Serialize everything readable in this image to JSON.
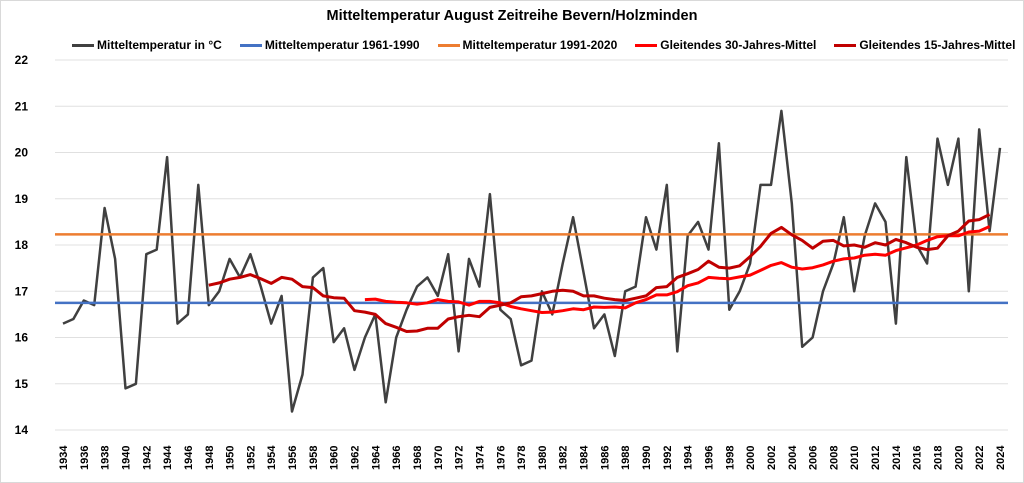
{
  "chart_data": {
    "type": "line",
    "title": "Mitteltemperatur August Zeitreihe Bevern/Holzminden",
    "xlabel": "",
    "ylabel": "",
    "ylim": [
      14,
      22
    ],
    "yticks": [
      14,
      15,
      16,
      17,
      18,
      19,
      20,
      21,
      22
    ],
    "xlim": [
      1934,
      2024
    ],
    "xticks": [
      1934,
      1936,
      1938,
      1940,
      1942,
      1944,
      1946,
      1948,
      1950,
      1952,
      1954,
      1956,
      1958,
      1960,
      1962,
      1964,
      1966,
      1968,
      1970,
      1972,
      1974,
      1976,
      1978,
      1980,
      1982,
      1984,
      1986,
      1988,
      1990,
      1992,
      1994,
      1996,
      1998,
      2000,
      2002,
      2004,
      2006,
      2008,
      2010,
      2012,
      2014,
      2016,
      2018,
      2020,
      2022,
      2024
    ],
    "grid": true,
    "legend_position": "top",
    "series": [
      {
        "name": "Mitteltemperatur in °C",
        "color": "#404040",
        "start_year": 1934,
        "values": [
          16.3,
          16.4,
          16.8,
          16.7,
          18.8,
          17.7,
          14.9,
          15.0,
          17.8,
          17.9,
          19.9,
          16.3,
          16.5,
          19.3,
          16.7,
          17.0,
          17.7,
          17.3,
          17.8,
          17.1,
          16.3,
          16.9,
          14.4,
          15.2,
          17.3,
          17.5,
          15.9,
          16.2,
          15.3,
          16.0,
          16.5,
          14.6,
          16.0,
          16.6,
          17.1,
          17.3,
          16.9,
          17.8,
          15.7,
          17.7,
          17.1,
          19.1,
          16.6,
          16.4,
          15.4,
          15.5,
          17.0,
          16.5,
          17.6,
          18.6,
          17.4,
          16.2,
          16.5,
          15.6,
          17.0,
          17.1,
          18.6,
          17.9,
          19.3,
          15.7,
          18.2,
          18.5,
          17.9,
          20.2,
          16.6,
          17.0,
          17.6,
          19.3,
          19.3,
          20.9,
          18.9,
          15.8,
          16.0,
          17.0,
          17.6,
          18.6,
          17.0,
          18.2,
          18.9,
          18.5,
          16.3,
          19.9,
          18.0,
          17.6,
          20.3,
          19.3,
          20.3,
          17.0,
          20.5,
          18.3,
          20.1
        ]
      },
      {
        "name": "Mitteltemperatur 1961-1990",
        "color": "#4472c4",
        "constant": 16.75
      },
      {
        "name": "Mitteltemperatur 1991-2020",
        "color": "#ed7d31",
        "constant": 18.23
      },
      {
        "name": "Gleitendes 30-Jahres-Mittel",
        "color": "#ff0000",
        "start_year": 1963,
        "values": [
          16.82,
          16.83,
          16.78,
          16.76,
          16.75,
          16.72,
          16.75,
          16.82,
          16.78,
          16.77,
          16.7,
          16.78,
          16.78,
          16.75,
          16.67,
          16.62,
          16.58,
          16.54,
          16.55,
          16.58,
          16.62,
          16.6,
          16.66,
          16.65,
          16.66,
          16.64,
          16.75,
          16.82,
          16.92,
          16.92,
          16.99,
          17.12,
          17.18,
          17.3,
          17.28,
          17.27,
          17.31,
          17.35,
          17.45,
          17.56,
          17.62,
          17.52,
          17.48,
          17.51,
          17.57,
          17.65,
          17.7,
          17.72,
          17.78,
          17.8,
          17.78,
          17.88,
          17.94,
          18.0,
          18.1,
          18.18,
          18.2,
          18.2,
          18.28,
          18.3,
          18.4
        ]
      },
      {
        "name": "Gleitendes 15-Jahres-Mittel",
        "color": "#c00000",
        "start_year": 1948,
        "values": [
          17.13,
          17.18,
          17.26,
          17.3,
          17.36,
          17.27,
          17.17,
          17.3,
          17.26,
          17.1,
          17.08,
          16.9,
          16.86,
          16.85,
          16.58,
          16.55,
          16.5,
          16.3,
          16.22,
          16.13,
          16.14,
          16.2,
          16.2,
          16.4,
          16.45,
          16.48,
          16.45,
          16.65,
          16.7,
          16.75,
          16.88,
          16.9,
          16.95,
          17.0,
          17.02,
          17.0,
          16.9,
          16.9,
          16.85,
          16.82,
          16.8,
          16.85,
          16.9,
          17.08,
          17.1,
          17.3,
          17.38,
          17.47,
          17.65,
          17.52,
          17.5,
          17.55,
          17.75,
          17.97,
          18.25,
          18.38,
          18.22,
          18.1,
          17.93,
          18.08,
          18.1,
          17.98,
          18.0,
          17.95,
          18.05,
          18.0,
          18.12,
          18.05,
          17.95,
          17.9,
          17.93,
          18.2,
          18.3,
          18.52,
          18.55,
          18.66
        ]
      }
    ]
  }
}
